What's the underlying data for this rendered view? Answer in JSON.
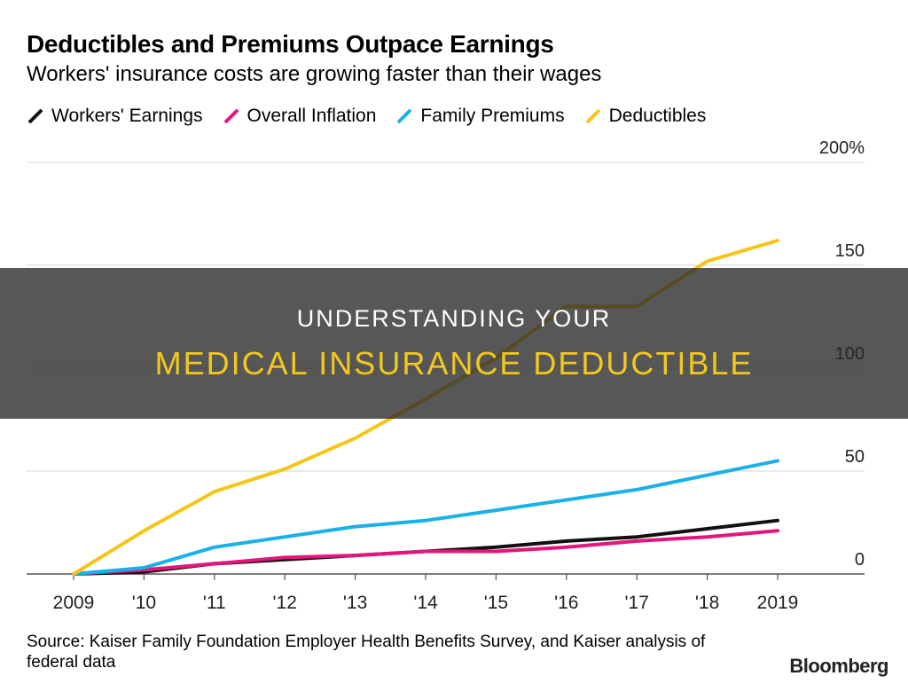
{
  "chart_data": {
    "type": "line",
    "title": "Deductibles and Premiums Outpace Earnings",
    "subtitle": "Workers' insurance costs are growing faster than their wages",
    "x": [
      "2009",
      "'10",
      "'11",
      "'12",
      "'13",
      "'14",
      "'15",
      "'16",
      "'17",
      "'18",
      "2019"
    ],
    "ylim": [
      0,
      200
    ],
    "ytick_values": [
      0,
      50,
      100,
      150,
      200
    ],
    "ytick_labels": [
      "0",
      "50",
      "100",
      "150",
      "200%"
    ],
    "grid": true,
    "legend_position": "top-left",
    "series": [
      {
        "name": "Workers' Earnings",
        "color": "#111111",
        "values": [
          0,
          1,
          5,
          7,
          9,
          11,
          13,
          16,
          18,
          22,
          26
        ]
      },
      {
        "name": "Overall Inflation",
        "color": "#e3167c",
        "values": [
          0,
          2,
          5,
          8,
          9,
          11,
          11,
          13,
          16,
          18,
          21
        ]
      },
      {
        "name": "Family Premiums",
        "color": "#1ab0e8",
        "values": [
          0,
          3,
          13,
          18,
          23,
          26,
          31,
          36,
          41,
          48,
          55
        ]
      },
      {
        "name": "Deductibles",
        "color": "#f5c518",
        "values": [
          0,
          21,
          40,
          51,
          66,
          85,
          105,
          130,
          130,
          152,
          162
        ]
      }
    ]
  },
  "source": "Source: Kaiser Family Foundation Employer Health Benefits Survey, and Kaiser analysis of federal data",
  "brand": "Bloomberg",
  "overlay": {
    "line1": "UNDERSTANDING YOUR",
    "line2": "MEDICAL INSURANCE DEDUCTIBLE"
  }
}
